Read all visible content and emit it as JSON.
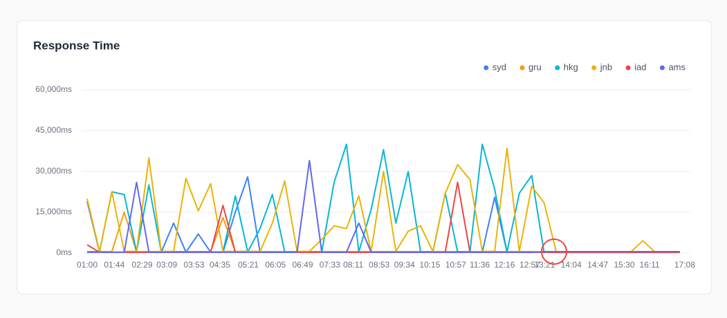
{
  "chart_data": {
    "type": "line",
    "title": "Response Time",
    "x": [
      "01:00",
      "01:20",
      "01:40",
      "02:00",
      "02:20",
      "02:40",
      "03:00",
      "03:20",
      "03:40",
      "04:00",
      "04:20",
      "04:40",
      "05:00",
      "05:20",
      "05:40",
      "06:00",
      "06:20",
      "06:40",
      "07:00",
      "07:20",
      "07:40",
      "08:00",
      "08:20",
      "08:40",
      "09:00",
      "09:20",
      "09:40",
      "10:00",
      "10:20",
      "10:40",
      "11:00",
      "11:20",
      "11:40",
      "12:00",
      "12:20",
      "12:40",
      "13:00",
      "13:20",
      "13:40",
      "14:00",
      "14:20",
      "14:40",
      "15:00",
      "15:20",
      "15:40",
      "16:00",
      "16:20",
      "16:40",
      "17:00"
    ],
    "xlim": [
      "01:00",
      "17:08"
    ],
    "xticks": [
      "01:00",
      "01:44",
      "02:29",
      "03:09",
      "03:53",
      "04:35",
      "05:21",
      "06:05",
      "06:49",
      "07:33",
      "08:11",
      "08:53",
      "09:34",
      "10:15",
      "10:57",
      "11:36",
      "12:16",
      "12:57",
      "13:21",
      "14:04",
      "14:47",
      "15:30",
      "16:11",
      "17:08"
    ],
    "ylim": [
      0,
      60000
    ],
    "yticks": [
      {
        "value": 0,
        "label": "0ms"
      },
      {
        "value": 15000,
        "label": "15,000ms"
      },
      {
        "value": 30000,
        "label": "30,000ms"
      },
      {
        "value": 45000,
        "label": "45,000ms"
      },
      {
        "value": 60000,
        "label": "60,000ms"
      }
    ],
    "grid": true,
    "legend": "top-right",
    "series": [
      {
        "name": "syd",
        "color": "#3b82f6",
        "values": [
          19000,
          300,
          300,
          300,
          300,
          300,
          300,
          11000,
          300,
          7000,
          300,
          300,
          15000,
          28000,
          300,
          300,
          300,
          300,
          300,
          300,
          300,
          300,
          300,
          300,
          300,
          300,
          300,
          300,
          300,
          300,
          300,
          300,
          300,
          20500,
          300,
          300,
          300,
          300,
          200,
          200,
          200,
          200,
          200,
          200,
          200,
          200,
          200,
          200,
          200
        ]
      },
      {
        "name": "gru",
        "color": "#f59e0b",
        "values": [
          500,
          500,
          500,
          15000,
          500,
          500,
          500,
          500,
          500,
          500,
          500,
          13000,
          500,
          500,
          500,
          500,
          500,
          500,
          500,
          500,
          500,
          500,
          500,
          500,
          500,
          500,
          500,
          500,
          500,
          500,
          500,
          500,
          500,
          500,
          500,
          500,
          500,
          300,
          300,
          300,
          300,
          300,
          300,
          300,
          300,
          300,
          300,
          300,
          300
        ]
      },
      {
        "name": "hkg",
        "color": "#06b6d4",
        "values": [
          400,
          400,
          22500,
          21500,
          400,
          25000,
          400,
          400,
          400,
          400,
          400,
          400,
          21000,
          400,
          9000,
          21500,
          400,
          400,
          400,
          400,
          26000,
          40000,
          400,
          16000,
          38000,
          11000,
          30000,
          400,
          400,
          22000,
          400,
          400,
          40000,
          23500,
          400,
          22000,
          28500,
          300,
          300,
          300,
          300,
          300,
          300,
          300,
          300,
          300,
          300,
          300,
          300
        ]
      },
      {
        "name": "jnb",
        "color": "#eab308",
        "values": [
          20000,
          600,
          22500,
          600,
          600,
          35000,
          600,
          600,
          27500,
          15500,
          25500,
          600,
          600,
          600,
          600,
          11000,
          26500,
          600,
          600,
          5000,
          10000,
          9000,
          21000,
          600,
          30000,
          600,
          8000,
          10000,
          600,
          22000,
          32500,
          27000,
          600,
          600,
          38500,
          600,
          24500,
          18500,
          300,
          300,
          300,
          300,
          300,
          300,
          300,
          4500,
          300,
          300,
          300
        ]
      },
      {
        "name": "iad",
        "color": "#ef4444",
        "values": [
          3000,
          300,
          300,
          300,
          300,
          300,
          300,
          300,
          300,
          300,
          300,
          17500,
          300,
          300,
          300,
          300,
          300,
          300,
          300,
          300,
          300,
          300,
          300,
          300,
          300,
          300,
          300,
          300,
          300,
          300,
          26000,
          300,
          300,
          300,
          300,
          300,
          300,
          300,
          300,
          300,
          300,
          300,
          300,
          300,
          300,
          300,
          300,
          300,
          300
        ]
      },
      {
        "name": "ams",
        "color": "#6366f1",
        "values": [
          300,
          300,
          300,
          300,
          26000,
          300,
          300,
          300,
          300,
          300,
          300,
          300,
          300,
          300,
          300,
          300,
          300,
          300,
          34000,
          300,
          300,
          300,
          11000,
          300,
          300,
          300,
          300,
          300,
          300,
          300,
          300,
          300,
          300,
          300,
          300,
          300,
          300,
          500,
          500,
          500,
          500,
          500,
          500,
          500,
          500,
          500,
          500,
          500,
          500
        ]
      }
    ]
  }
}
